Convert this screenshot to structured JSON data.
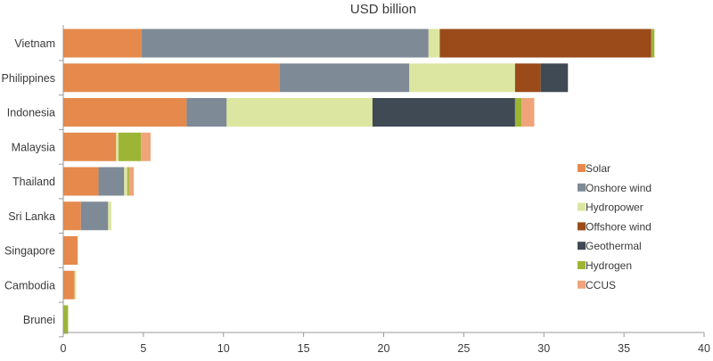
{
  "chart_data": {
    "type": "bar",
    "orientation": "horizontal",
    "stacked": true,
    "title": "USD billion",
    "xlabel": "",
    "ylabel": "",
    "xlim": [
      0,
      40
    ],
    "xticks": [
      0,
      5,
      10,
      15,
      20,
      25,
      30,
      35,
      40
    ],
    "grid": false,
    "legend_position": "right",
    "categories": [
      "Vietnam",
      "Philippines",
      "Indonesia",
      "Malaysia",
      "Thailand",
      "Sri Lanka",
      "Singapore",
      "Cambodia",
      "Brunei"
    ],
    "series": [
      {
        "name": "Solar",
        "color": "#E58A4C",
        "values": [
          4.9,
          13.5,
          7.7,
          3.3,
          2.2,
          1.1,
          0.9,
          0.7,
          0.0
        ]
      },
      {
        "name": "Onshore wind",
        "color": "#7E8A96",
        "values": [
          17.9,
          8.1,
          2.5,
          0.0,
          1.6,
          1.7,
          0.0,
          0.0,
          0.0
        ]
      },
      {
        "name": "Hydropower",
        "color": "#DDE6A0",
        "values": [
          0.7,
          6.6,
          9.1,
          0.15,
          0.2,
          0.2,
          0.0,
          0.1,
          0.0
        ]
      },
      {
        "name": "Offshore wind",
        "color": "#9B4A19",
        "values": [
          13.2,
          1.6,
          0.0,
          0.0,
          0.0,
          0.0,
          0.0,
          0.0,
          0.0
        ]
      },
      {
        "name": "Geothermal",
        "color": "#3F4A55",
        "values": [
          0.0,
          1.7,
          8.9,
          0.0,
          0.0,
          0.0,
          0.0,
          0.0,
          0.0
        ]
      },
      {
        "name": "Hydrogen",
        "color": "#9DB535",
        "values": [
          0.2,
          0.0,
          0.4,
          1.4,
          0.1,
          0.0,
          0.0,
          0.0,
          0.3
        ]
      },
      {
        "name": "CCUS",
        "color": "#EFA47A",
        "values": [
          0.0,
          0.0,
          0.8,
          0.6,
          0.3,
          0.0,
          0.0,
          0.0,
          0.0
        ]
      }
    ]
  }
}
